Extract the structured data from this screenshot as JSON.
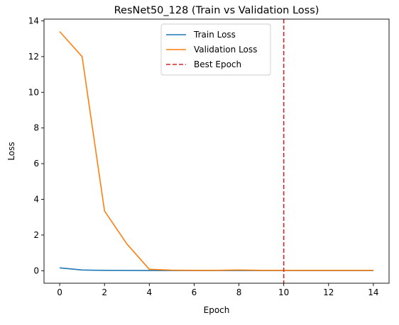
{
  "chart_data": {
    "type": "line",
    "title": "ResNet50_128 (Train vs Validation Loss)",
    "xlabel": "Epoch",
    "ylabel": "Loss",
    "xlim": [
      -0.7,
      14.7
    ],
    "ylim": [
      -0.7,
      14.1
    ],
    "xticks": [
      0,
      2,
      4,
      6,
      8,
      10,
      12,
      14
    ],
    "yticks": [
      0,
      2,
      4,
      6,
      8,
      10,
      12,
      14
    ],
    "grid": false,
    "legend_position": "top-center",
    "x": [
      0,
      1,
      2,
      3,
      4,
      5,
      6,
      7,
      8,
      9,
      10,
      11,
      12,
      13,
      14
    ],
    "series": [
      {
        "name": "Train Loss",
        "color": "#1f77b4",
        "values": [
          0.16,
          0.04,
          0.02,
          0.015,
          0.01,
          0.01,
          0.01,
          0.01,
          0.01,
          0.01,
          0.01,
          0.01,
          0.01,
          0.01,
          0.01
        ]
      },
      {
        "name": "Validation Loss",
        "color": "#ff7f0e",
        "values": [
          13.4,
          12.0,
          3.35,
          1.5,
          0.08,
          0.03,
          0.02,
          0.02,
          0.04,
          0.02,
          0.02,
          0.02,
          0.02,
          0.02,
          0.02
        ]
      }
    ],
    "vlines": [
      {
        "name": "Best Epoch",
        "x": 10,
        "color": "#d62728",
        "style": "dashed"
      }
    ]
  }
}
